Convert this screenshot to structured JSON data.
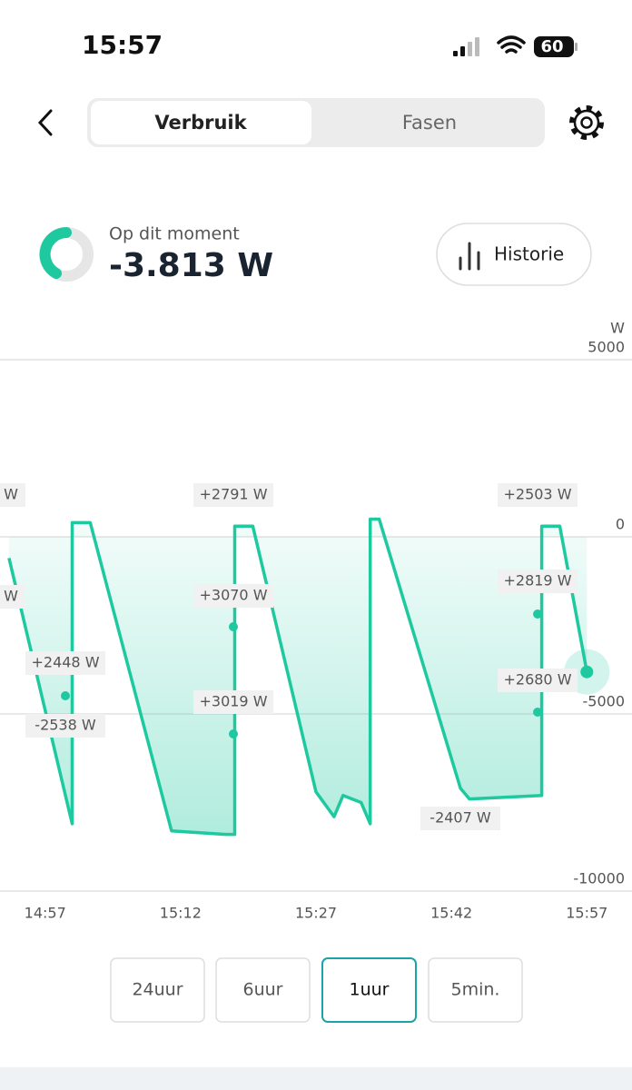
{
  "status_bar": {
    "time": "15:57",
    "battery": "60"
  },
  "tabs": [
    "Verbruik",
    "Fasen"
  ],
  "current": {
    "label": "Op dit moment",
    "value": "-3.813 W"
  },
  "history_button": "Historie",
  "chart_data": {
    "type": "line",
    "y_unit": "W",
    "color": "#1fc9a0",
    "x": [
      "14:53",
      "15:00",
      "15:00",
      "15:02",
      "15:11",
      "15:17",
      "15:18",
      "15:18",
      "15:20",
      "15:27",
      "15:29",
      "15:30",
      "15:32",
      "15:33",
      "15:33",
      "15:34",
      "15:43",
      "15:44",
      "15:52",
      "15:52",
      "15:54",
      "15:57"
    ],
    "values": [
      -600,
      -8100,
      400,
      400,
      -8300,
      -8400,
      -8400,
      300,
      300,
      -7200,
      -7900,
      -7300,
      -7500,
      -8100,
      500,
      500,
      -7100,
      -7400,
      -7300,
      300,
      300,
      -3813
    ],
    "xlim": [
      "14:52",
      "16:02"
    ],
    "xticks": [
      "14:57",
      "15:12",
      "15:27",
      "15:42",
      "15:57"
    ],
    "ylim": [
      -10000,
      5000
    ],
    "yticks": [
      5000,
      0,
      -5000,
      -10000
    ],
    "grid": true,
    "annotations": [
      "W",
      "+2791 W",
      "+2503 W",
      "W",
      "+3070 W",
      "+2819 W",
      "+2448 W",
      "+3019 W",
      "+2680 W",
      "-2538 W",
      "-2407 W"
    ]
  },
  "ranges": [
    "24uur",
    "6uur",
    "1uur",
    "5min."
  ],
  "selected_range": "1uur"
}
